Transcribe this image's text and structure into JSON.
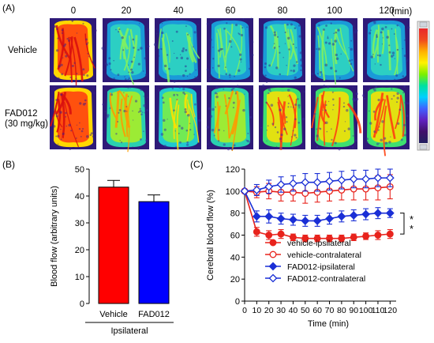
{
  "panel_a": {
    "label": "(A)",
    "unit": "(min)",
    "timepoints": [
      "0",
      "20",
      "40",
      "60",
      "80",
      "100",
      "120"
    ],
    "rows": [
      {
        "label_lines": [
          "Vehicle"
        ],
        "perfusion_levels": [
          0.95,
          0.45,
          0.5,
          0.5,
          0.5,
          0.5,
          0.55
        ]
      },
      {
        "label_lines": [
          "FAD012",
          "(30 mg/kg)"
        ],
        "perfusion_levels": [
          0.95,
          0.75,
          0.7,
          0.8,
          0.85,
          0.9,
          0.9
        ]
      }
    ],
    "colorbar_colors": [
      "#e8282b",
      "#f04a1f",
      "#ffb000",
      "#fff200",
      "#7cf000",
      "#00e0a0",
      "#00d0ff",
      "#4060ff",
      "#6020c0",
      "#40106a",
      "#202060"
    ]
  },
  "chart_data": [
    {
      "panel_label": "(B)",
      "type": "bar",
      "ylabel": "Blood flow (arbitrary units)",
      "xlabel": "Ipsilateral",
      "categories": [
        "Vehicle",
        "FAD012"
      ],
      "values": [
        43.3,
        37.9
      ],
      "errors": [
        2.5,
        2.5
      ],
      "colors": [
        "#ff0000",
        "#0000ff"
      ],
      "ylim": [
        0,
        50
      ],
      "yticks": [
        "0",
        "10",
        "20",
        "30",
        "40",
        "50"
      ]
    },
    {
      "panel_label": "(C)",
      "type": "line",
      "ylabel": "Cerebral blood flow (%)",
      "xlabel": "Time (min)",
      "xlim": [
        0,
        125
      ],
      "ylim": [
        0,
        120
      ],
      "xticks": [
        "0",
        "10",
        "20",
        "30",
        "40",
        "50",
        "60",
        "70",
        "80",
        "90",
        "100",
        "110",
        "120"
      ],
      "yticks": [
        "0",
        "20",
        "40",
        "60",
        "80",
        "100",
        "120"
      ],
      "x": [
        0,
        10,
        20,
        30,
        40,
        50,
        60,
        70,
        80,
        90,
        100,
        110,
        120
      ],
      "series": [
        {
          "name": "vehicle-ipsilateral",
          "color": "#e8231c",
          "filled": true,
          "marker": "circle",
          "values": [
            100,
            63,
            60,
            61,
            58,
            57,
            57,
            57,
            57,
            58,
            59,
            60,
            61
          ],
          "errors": [
            0,
            4,
            4,
            4,
            3,
            3,
            3,
            3,
            3,
            3,
            3,
            4,
            4
          ]
        },
        {
          "name": "vehicle-contralateral",
          "color": "#e8231c",
          "filled": false,
          "marker": "circle",
          "values": [
            100,
            99,
            100,
            99,
            99,
            98,
            99,
            100,
            101,
            102,
            102,
            103,
            104
          ],
          "errors": [
            0,
            5,
            7,
            8,
            8,
            9,
            9,
            9,
            9,
            10,
            10,
            11,
            11
          ]
        },
        {
          "name": "FAD012-ipsilateral",
          "color": "#1a2fd6",
          "filled": true,
          "marker": "diamond",
          "values": [
            100,
            77,
            77,
            75,
            74,
            73,
            73,
            75,
            77,
            78,
            79,
            80,
            80
          ],
          "errors": [
            0,
            5,
            6,
            5,
            5,
            5,
            5,
            5,
            5,
            5,
            5,
            5,
            4
          ]
        },
        {
          "name": "FAD012-contralateral",
          "color": "#1a2fd6",
          "filled": false,
          "marker": "diamond",
          "values": [
            100,
            101,
            104,
            106,
            107,
            108,
            108,
            109,
            110,
            111,
            111,
            112,
            112
          ],
          "errors": [
            0,
            5,
            6,
            7,
            7,
            8,
            8,
            8,
            8,
            8,
            8,
            8,
            8
          ]
        }
      ],
      "significance_label": "* *"
    }
  ]
}
